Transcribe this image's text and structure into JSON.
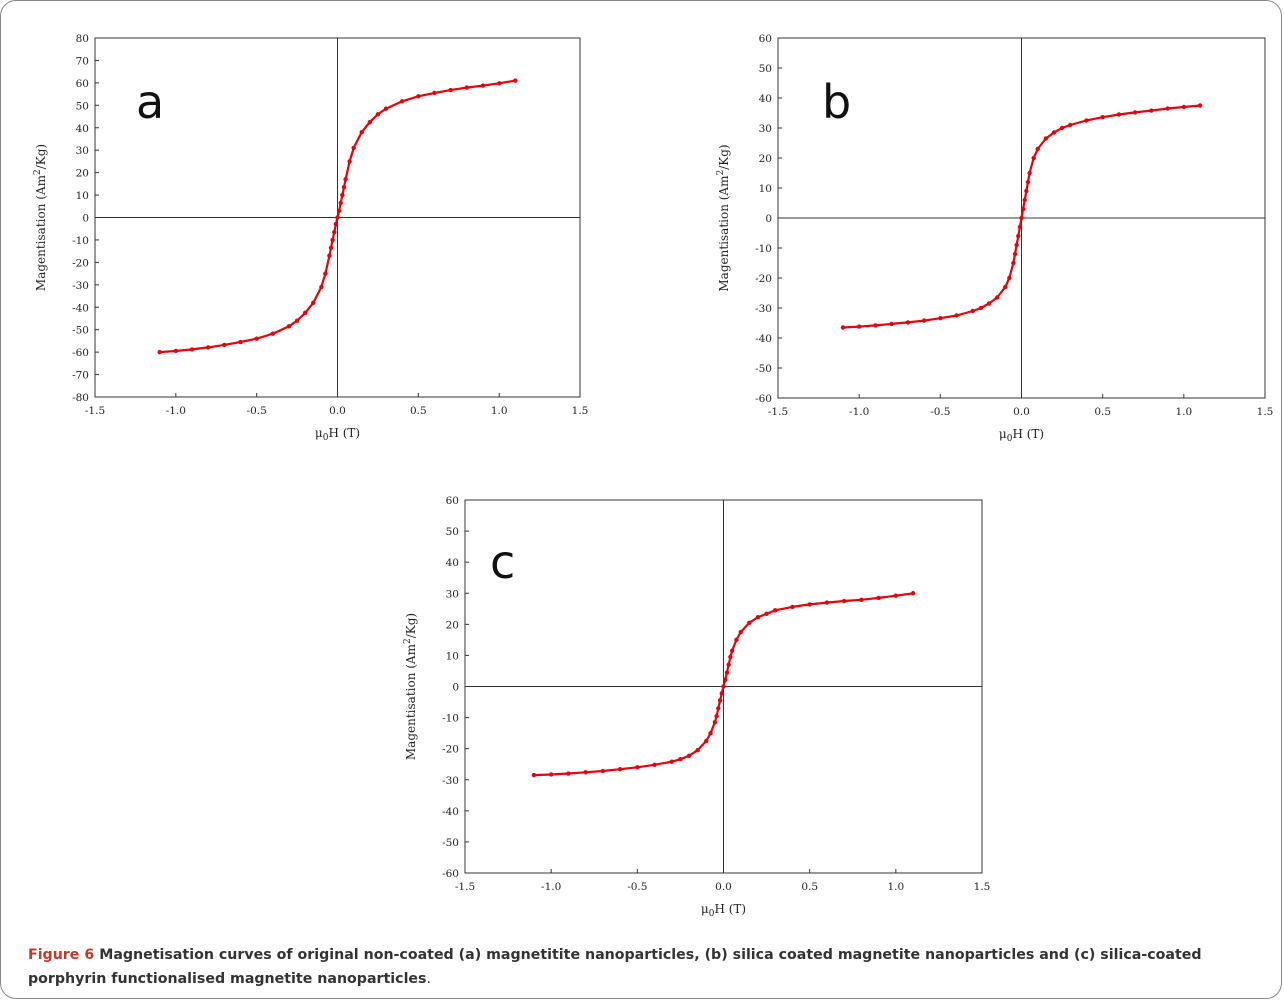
{
  "figure": {
    "label": "Figure 6",
    "caption_text": "Magnetisation curves of original non-coated (a) magnetitite nanoparticles, (b) silica coated magnetite nanoparticles and (c) silica-coated porphyrin functionalised magnetite nanoparticles",
    "caption_end": "."
  },
  "colors": {
    "series": "#e8000b",
    "axis": "#333333",
    "frame": "#888888",
    "caption_label": "#c0392b"
  },
  "chart_data": [
    {
      "type": "scatter",
      "panel_label": "a",
      "xlabel": "μ0H (T)",
      "ylabel": "Magentisation (Am2/Kg)",
      "xlim": [
        -1.5,
        1.5
      ],
      "ylim": [
        -80,
        80
      ],
      "xticks": [
        "-1.5",
        "-1.0",
        "-0.5",
        "0.0",
        "0.5",
        "1.0",
        "1.5"
      ],
      "yticks": [
        "-80",
        "-70",
        "-60",
        "-50",
        "-40",
        "-30",
        "-20",
        "-10",
        "0",
        "10",
        "20",
        "30",
        "40",
        "50",
        "60",
        "70",
        "80"
      ],
      "grid": false,
      "zero_lines": true,
      "series": [
        {
          "x": [
            -1.1,
            -1.0,
            -0.9,
            -0.8,
            -0.7,
            -0.6,
            -0.5,
            -0.4,
            -0.3,
            -0.25,
            -0.2,
            -0.15,
            -0.1,
            -0.075,
            -0.05,
            -0.04,
            -0.03,
            -0.02,
            -0.01,
            0.0,
            0.01,
            0.02,
            0.03,
            0.04,
            0.05,
            0.075,
            0.1,
            0.15,
            0.2,
            0.25,
            0.3,
            0.4,
            0.5,
            0.6,
            0.7,
            0.8,
            0.9,
            1.0,
            1.1
          ],
          "y": [
            -60,
            -59.5,
            -58.8,
            -57.9,
            -56.8,
            -55.5,
            -54,
            -51.8,
            -48.5,
            -46,
            -42.5,
            -38,
            -31,
            -25,
            -17,
            -13.5,
            -10,
            -6.5,
            -3,
            0,
            3,
            6.5,
            10,
            13.5,
            17,
            25,
            31,
            38,
            42.5,
            46,
            48.5,
            51.8,
            54,
            55.5,
            56.8,
            57.9,
            58.8,
            59.8,
            61
          ]
        }
      ]
    },
    {
      "type": "scatter",
      "panel_label": "b",
      "xlabel": "μ0H (T)",
      "ylabel": "Magentisation (Am2/Kg)",
      "xlim": [
        -1.5,
        1.5
      ],
      "ylim": [
        -60,
        60
      ],
      "xticks": [
        "-1.5",
        "-1.0",
        "-0.5",
        "0.0",
        "0.5",
        "1.0",
        "1.5"
      ],
      "yticks": [
        "-60",
        "-50",
        "-40",
        "-30",
        "-20",
        "-10",
        "0",
        "10",
        "20",
        "30",
        "40",
        "50",
        "60"
      ],
      "grid": false,
      "zero_lines": true,
      "series": [
        {
          "x": [
            -1.1,
            -1.0,
            -0.9,
            -0.8,
            -0.7,
            -0.6,
            -0.5,
            -0.4,
            -0.3,
            -0.25,
            -0.2,
            -0.15,
            -0.1,
            -0.075,
            -0.05,
            -0.04,
            -0.03,
            -0.02,
            -0.01,
            0.0,
            0.01,
            0.02,
            0.03,
            0.04,
            0.05,
            0.075,
            0.1,
            0.15,
            0.2,
            0.25,
            0.3,
            0.4,
            0.5,
            0.6,
            0.7,
            0.8,
            0.9,
            1.0,
            1.1
          ],
          "y": [
            -36.5,
            -36.2,
            -35.8,
            -35.3,
            -34.8,
            -34.2,
            -33.4,
            -32.5,
            -31,
            -30,
            -28.5,
            -26.5,
            -23,
            -20,
            -15,
            -12,
            -9,
            -6,
            -3,
            0,
            3,
            6,
            9,
            12,
            15,
            20,
            23,
            26.5,
            28.5,
            30,
            31,
            32.5,
            33.6,
            34.5,
            35.2,
            35.8,
            36.5,
            37,
            37.5
          ]
        }
      ]
    },
    {
      "type": "scatter",
      "panel_label": "c",
      "xlabel": "μ0H (T)",
      "ylabel": "Magentisation (Am2/Kg)",
      "xlim": [
        -1.5,
        1.5
      ],
      "ylim": [
        -60,
        60
      ],
      "xticks": [
        "-1.5",
        "-1.0",
        "-0.5",
        "0.0",
        "0.5",
        "1.0",
        "1.5"
      ],
      "yticks": [
        "-60",
        "-50",
        "-40",
        "-30",
        "-20",
        "-10",
        "0",
        "10",
        "20",
        "30",
        "40",
        "50",
        "60"
      ],
      "grid": false,
      "zero_lines": true,
      "series": [
        {
          "x": [
            -1.1,
            -1.0,
            -0.9,
            -0.8,
            -0.7,
            -0.6,
            -0.5,
            -0.4,
            -0.3,
            -0.25,
            -0.2,
            -0.15,
            -0.1,
            -0.075,
            -0.05,
            -0.04,
            -0.03,
            -0.02,
            -0.01,
            0.0,
            0.01,
            0.02,
            0.03,
            0.04,
            0.05,
            0.075,
            0.1,
            0.15,
            0.2,
            0.25,
            0.3,
            0.4,
            0.5,
            0.6,
            0.7,
            0.8,
            0.9,
            1.0,
            1.1
          ],
          "y": [
            -28.5,
            -28.3,
            -28,
            -27.6,
            -27.2,
            -26.6,
            -26,
            -25.2,
            -24.2,
            -23.4,
            -22.3,
            -20.5,
            -17.5,
            -15,
            -11.5,
            -9.5,
            -7,
            -4.5,
            -2.2,
            0,
            2.2,
            4.5,
            7,
            9.5,
            11.5,
            15,
            17.5,
            20.5,
            22.3,
            23.4,
            24.5,
            25.6,
            26.4,
            27,
            27.5,
            27.9,
            28.5,
            29.2,
            30
          ]
        }
      ]
    }
  ]
}
